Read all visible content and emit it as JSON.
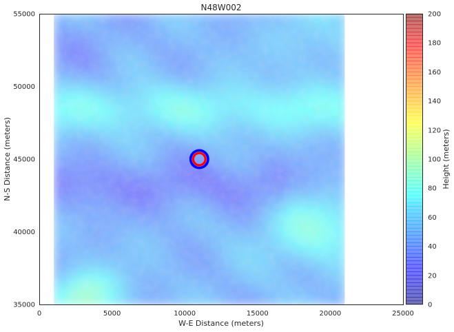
{
  "chart_data": {
    "type": "heatmap",
    "title": "N48W002",
    "xlabel": "W-E Distance (meters)",
    "ylabel": "N-S Distance (meters)",
    "xlim": [
      0,
      25000
    ],
    "ylim": [
      35000,
      55000
    ],
    "xticks": [
      "0",
      "5000",
      "10000",
      "15000",
      "20000",
      "25000"
    ],
    "yticks": [
      "35000",
      "40000",
      "45000",
      "50000",
      "55000"
    ],
    "xtick_values": [
      0,
      5000,
      10000,
      15000,
      20000,
      25000
    ],
    "ytick_values": [
      35000,
      40000,
      45000,
      50000,
      55000
    ],
    "grid": false,
    "colormap": "jet",
    "alpha": 0.5,
    "raster_extent": {
      "x": [
        1000,
        21000
      ],
      "y": [
        35000,
        55000
      ]
    },
    "height_range": [
      0,
      200
    ],
    "overlay": {
      "center": [
        11000,
        45000
      ],
      "outer_ring_color": "#0000ff",
      "inner_ring_color": "#ff0000"
    },
    "colorbar": {
      "label": "Height (meters)",
      "range": [
        0,
        200
      ],
      "ticks": [
        "0",
        "20",
        "40",
        "60",
        "80",
        "100",
        "120",
        "140",
        "160",
        "180",
        "200"
      ],
      "tick_values": [
        0,
        20,
        40,
        60,
        80,
        100,
        120,
        140,
        160,
        180,
        200
      ]
    }
  }
}
